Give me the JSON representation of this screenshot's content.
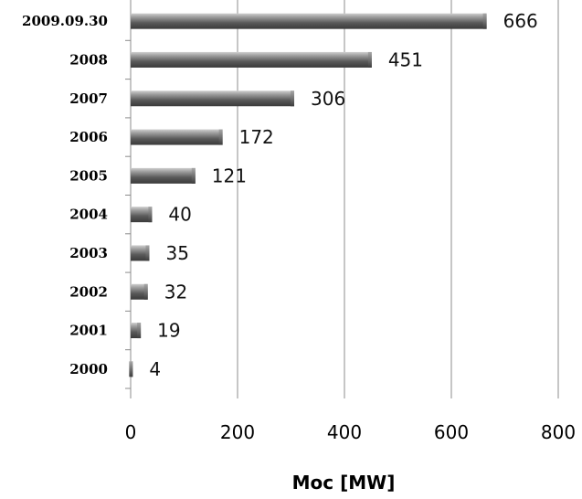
{
  "chart_data": {
    "type": "bar",
    "orientation": "horizontal",
    "categories": [
      "2009.09.30",
      "2008",
      "2007",
      "2006",
      "2005",
      "2004",
      "2003",
      "2002",
      "2001",
      "2000"
    ],
    "values": [
      666,
      451,
      306,
      172,
      121,
      40,
      35,
      32,
      19,
      4
    ],
    "data_labels": [
      "666",
      "451",
      "306",
      "172",
      "121",
      "40",
      "35",
      "32",
      "19",
      "4"
    ],
    "title": "",
    "xlabel": "Moc [MW]",
    "ylabel": "",
    "xlim": [
      0,
      800
    ],
    "xticks": [
      0,
      200,
      400,
      600,
      800
    ],
    "xtick_labels": [
      "0",
      "200",
      "400",
      "600",
      "800"
    ],
    "grid": "vertical",
    "legend": "none",
    "colors": {
      "bar": "#5a5a5a",
      "bar_highlight": "#b0b0b0",
      "grid": "#8c8c8c"
    }
  }
}
